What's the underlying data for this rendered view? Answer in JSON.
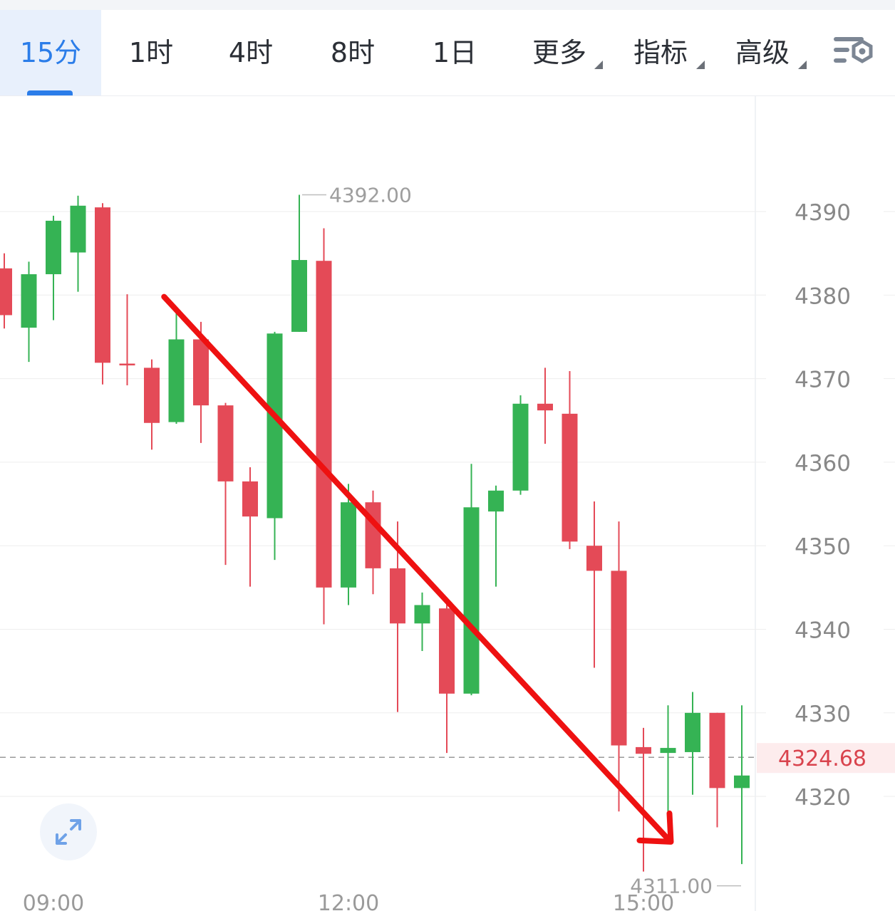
{
  "tabs": [
    {
      "label": "15分",
      "active": true
    },
    {
      "label": "1时",
      "active": false
    },
    {
      "label": "4时",
      "active": false
    },
    {
      "label": "8时",
      "active": false
    },
    {
      "label": "1日",
      "active": false
    },
    {
      "label": "更多",
      "active": false,
      "dropdown": true
    },
    {
      "label": "指标",
      "active": false,
      "dropdown": true
    },
    {
      "label": "高级",
      "active": false,
      "dropdown": true
    }
  ],
  "icons": {
    "settings": "chart-settings-icon",
    "expand": "expand-icon"
  },
  "colors": {
    "up": "#35b354",
    "down": "#e44a57",
    "accent": "#2b7de9",
    "arrow": "#ee1111",
    "grid": "#eeeeee",
    "axis_text": "#888888",
    "current_price": "#d9434d"
  },
  "chart_data": {
    "type": "candlestick",
    "interval": "15分",
    "y_axis": {
      "ticks": [
        4390,
        4380,
        4370,
        4360,
        4350,
        4340,
        4330,
        4320
      ],
      "range": [
        4303,
        4404
      ]
    },
    "x_axis": {
      "labels": [
        "09:00",
        "12:00",
        "15:00"
      ],
      "label_candle_index": [
        2,
        14,
        26
      ]
    },
    "current_price": "4324.68",
    "max_label": "4392.00",
    "min_label": "4311.00",
    "candles": [
      {
        "o": 4383.2,
        "c": 4377.6,
        "h": 4385.0,
        "l": 4376.0
      },
      {
        "o": 4376.1,
        "c": 4382.5,
        "h": 4384.0,
        "l": 4372.0
      },
      {
        "o": 4382.5,
        "c": 4388.9,
        "h": 4389.5,
        "l": 4377.0
      },
      {
        "o": 4385.1,
        "c": 4390.7,
        "h": 4391.9,
        "l": 4380.4
      },
      {
        "o": 4390.5,
        "c": 4371.9,
        "h": 4391.0,
        "l": 4369.3
      },
      {
        "o": 4371.8,
        "c": 4371.7,
        "h": 4380.1,
        "l": 4369.2
      },
      {
        "o": 4371.3,
        "c": 4364.7,
        "h": 4372.3,
        "l": 4361.5
      },
      {
        "o": 4364.8,
        "c": 4374.7,
        "h": 4378.5,
        "l": 4364.6
      },
      {
        "o": 4374.7,
        "c": 4366.8,
        "h": 4376.8,
        "l": 4362.3
      },
      {
        "o": 4366.8,
        "c": 4357.7,
        "h": 4367.1,
        "l": 4347.7
      },
      {
        "o": 4357.7,
        "c": 4353.5,
        "h": 4359.4,
        "l": 4345.1
      },
      {
        "o": 4353.3,
        "c": 4375.4,
        "h": 4375.6,
        "l": 4348.3
      },
      {
        "o": 4375.6,
        "c": 4384.2,
        "h": 4392.0,
        "l": 4375.6
      },
      {
        "o": 4384.1,
        "c": 4345.0,
        "h": 4388.0,
        "l": 4340.6
      },
      {
        "o": 4345.0,
        "c": 4355.2,
        "h": 4357.4,
        "l": 4342.9
      },
      {
        "o": 4355.2,
        "c": 4347.3,
        "h": 4356.6,
        "l": 4344.2
      },
      {
        "o": 4347.3,
        "c": 4340.7,
        "h": 4352.9,
        "l": 4330.1
      },
      {
        "o": 4340.7,
        "c": 4342.9,
        "h": 4344.4,
        "l": 4337.4
      },
      {
        "o": 4342.5,
        "c": 4332.3,
        "h": 4343.4,
        "l": 4325.2
      },
      {
        "o": 4332.3,
        "c": 4354.6,
        "h": 4359.8,
        "l": 4332.1
      },
      {
        "o": 4354.1,
        "c": 4356.6,
        "h": 4357.2,
        "l": 4345.1
      },
      {
        "o": 4356.6,
        "c": 4367.0,
        "h": 4368.0,
        "l": 4356.1
      },
      {
        "o": 4367.0,
        "c": 4366.2,
        "h": 4371.3,
        "l": 4362.2
      },
      {
        "o": 4365.8,
        "c": 4350.5,
        "h": 4370.9,
        "l": 4349.6
      },
      {
        "o": 4350.0,
        "c": 4347.0,
        "h": 4355.3,
        "l": 4335.4
      },
      {
        "o": 4347.0,
        "c": 4326.1,
        "h": 4352.9,
        "l": 4318.2
      },
      {
        "o": 4325.9,
        "c": 4325.1,
        "h": 4328.2,
        "l": 4311.0
      },
      {
        "o": 4325.2,
        "c": 4325.8,
        "h": 4330.9,
        "l": 4316.5
      },
      {
        "o": 4325.3,
        "c": 4330.0,
        "h": 4332.5,
        "l": 4320.2
      },
      {
        "o": 4330.0,
        "c": 4321.0,
        "h": 4330.0,
        "l": 4316.3
      },
      {
        "o": 4321.0,
        "c": 4322.5,
        "h": 4330.9,
        "l": 4311.9
      }
    ],
    "annotation": {
      "type": "trend-arrow",
      "from": {
        "candle": 6.5,
        "price": 4379.8
      },
      "to": {
        "candle": 27.0,
        "price": 4314.9
      }
    }
  }
}
